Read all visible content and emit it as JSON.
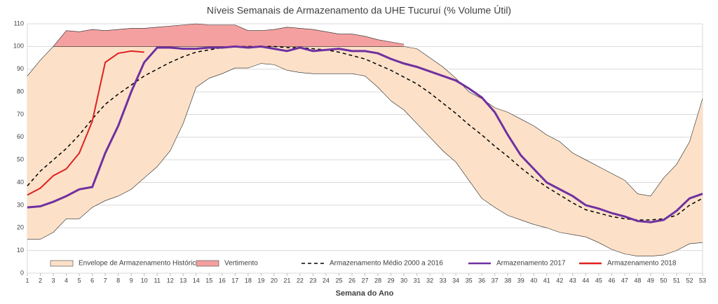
{
  "chart_data": {
    "type": "line",
    "title": "Níveis Semanais de Armazenamento da UHE Tucuruí (% Volume Útil)",
    "x_label": "Semana do Ano",
    "x": [
      1,
      2,
      3,
      4,
      5,
      6,
      7,
      8,
      9,
      10,
      11,
      12,
      13,
      14,
      15,
      16,
      17,
      18,
      19,
      20,
      21,
      22,
      23,
      24,
      25,
      26,
      27,
      28,
      29,
      30,
      31,
      32,
      33,
      34,
      35,
      36,
      37,
      38,
      39,
      40,
      41,
      42,
      43,
      44,
      45,
      46,
      47,
      48,
      49,
      50,
      51,
      52,
      53
    ],
    "xlim": [
      1,
      53
    ],
    "xticks": [
      1,
      2,
      3,
      4,
      5,
      6,
      7,
      8,
      9,
      10,
      11,
      12,
      13,
      14,
      15,
      16,
      17,
      18,
      19,
      20,
      21,
      22,
      23,
      24,
      25,
      26,
      27,
      28,
      29,
      30,
      31,
      32,
      33,
      34,
      35,
      36,
      37,
      38,
      39,
      40,
      41,
      42,
      43,
      44,
      45,
      46,
      47,
      48,
      49,
      50,
      51,
      52,
      53
    ],
    "ylim": [
      0,
      110
    ],
    "yticks": [
      0,
      10,
      20,
      30,
      40,
      50,
      60,
      70,
      80,
      90,
      100,
      110
    ],
    "grid": true,
    "series": [
      {
        "name": "Envelope de Armazenamento Histórico",
        "kind": "band",
        "color": "#fce1c8",
        "lower": [
          15,
          15,
          18,
          24,
          24,
          29,
          32,
          34,
          37,
          42,
          47,
          54,
          66,
          82,
          86,
          88,
          90.5,
          90.5,
          92.5,
          92,
          89.5,
          88.5,
          88,
          88,
          88,
          88,
          87,
          82,
          76,
          72,
          66,
          60,
          54,
          49,
          41,
          33,
          29,
          25.5,
          23.5,
          21.5,
          20,
          18,
          17,
          16,
          13.5,
          10.5,
          8.5,
          7.5,
          7.5,
          8,
          10,
          13,
          13.5
        ],
        "upper": [
          87,
          94,
          100,
          100,
          100,
          100,
          100,
          100,
          100,
          100,
          100,
          100,
          100,
          100,
          100,
          100,
          100,
          100,
          100,
          100,
          100,
          100,
          100,
          100,
          100,
          100,
          100,
          100,
          100,
          100,
          99,
          95,
          91,
          86,
          80,
          77,
          73,
          71,
          68,
          65,
          61,
          58,
          53,
          50,
          47,
          44,
          41,
          35,
          34,
          42,
          48,
          58,
          77
        ]
      },
      {
        "name": "Vertimento",
        "kind": "band",
        "color": "#f4a0a0",
        "lower": [
          null,
          null,
          100,
          100,
          100,
          100,
          100,
          100,
          100,
          100,
          100,
          100,
          100,
          100,
          100,
          100,
          100,
          100,
          100,
          100,
          100,
          100,
          100,
          100,
          100,
          100,
          100,
          100,
          100,
          100,
          null,
          null,
          null,
          null,
          null,
          null,
          null,
          null,
          null,
          null,
          null,
          null,
          null,
          null,
          null,
          null,
          null,
          null,
          null,
          null,
          null,
          null,
          null
        ],
        "upper": [
          null,
          null,
          100,
          107,
          106.5,
          107.5,
          107,
          107.5,
          108,
          108,
          108.5,
          109,
          109.5,
          110,
          109.5,
          109.5,
          109.5,
          107,
          107,
          107.5,
          108.5,
          108,
          107.5,
          106.5,
          105.5,
          105.5,
          104.5,
          103,
          102,
          101,
          null,
          null,
          null,
          null,
          null,
          null,
          null,
          null,
          null,
          null,
          null,
          null,
          null,
          null,
          null,
          null,
          null,
          null,
          null,
          null,
          null,
          null,
          null
        ]
      },
      {
        "name": "Armazenamento Médio 2000 a 2016",
        "kind": "line",
        "dashed": true,
        "color": "#000000",
        "values": [
          38.5,
          45,
          50,
          55,
          61,
          68,
          74.5,
          79,
          83,
          87,
          90,
          93,
          95.5,
          97.5,
          98.5,
          99.5,
          100,
          100,
          100,
          100,
          99.5,
          99.5,
          99,
          98.5,
          97.5,
          96,
          94.5,
          92,
          89.5,
          86.5,
          83.5,
          79.5,
          75,
          70.5,
          65.5,
          61,
          56,
          51.5,
          46.5,
          42,
          38,
          34.5,
          31,
          28,
          26.5,
          25,
          24,
          23.5,
          23.5,
          24,
          25.5,
          30,
          33
        ]
      },
      {
        "name": "Armazenamento 2017",
        "kind": "line",
        "dashed": false,
        "color": "#7030a0",
        "values": [
          29,
          29.5,
          31.5,
          34,
          37,
          38,
          53,
          65,
          80,
          93,
          99.5,
          99.5,
          99,
          99,
          99.5,
          99.5,
          100,
          99.5,
          100,
          99,
          98,
          99.5,
          98,
          98.5,
          99,
          98,
          98,
          97,
          94.5,
          92.5,
          91,
          89,
          87,
          85,
          81.5,
          77.5,
          71,
          61,
          52,
          46,
          40,
          37,
          34,
          30,
          28.5,
          26.5,
          25,
          23,
          22.5,
          23.5,
          27.5,
          33,
          35
        ]
      },
      {
        "name": "Armazenamento 2018",
        "kind": "line",
        "dashed": false,
        "color": "#e02020",
        "values": [
          34.5,
          37.5,
          43,
          46,
          53,
          67,
          93,
          97,
          98,
          97.5,
          null,
          null,
          null,
          null,
          null,
          null,
          null,
          null,
          null,
          null,
          null,
          null,
          null,
          null,
          null,
          null,
          null,
          null,
          null,
          null,
          null,
          null,
          null,
          null,
          null,
          null,
          null,
          null,
          null,
          null,
          null,
          null,
          null,
          null,
          null,
          null,
          null,
          null,
          null,
          null,
          null,
          null,
          null
        ]
      }
    ]
  }
}
